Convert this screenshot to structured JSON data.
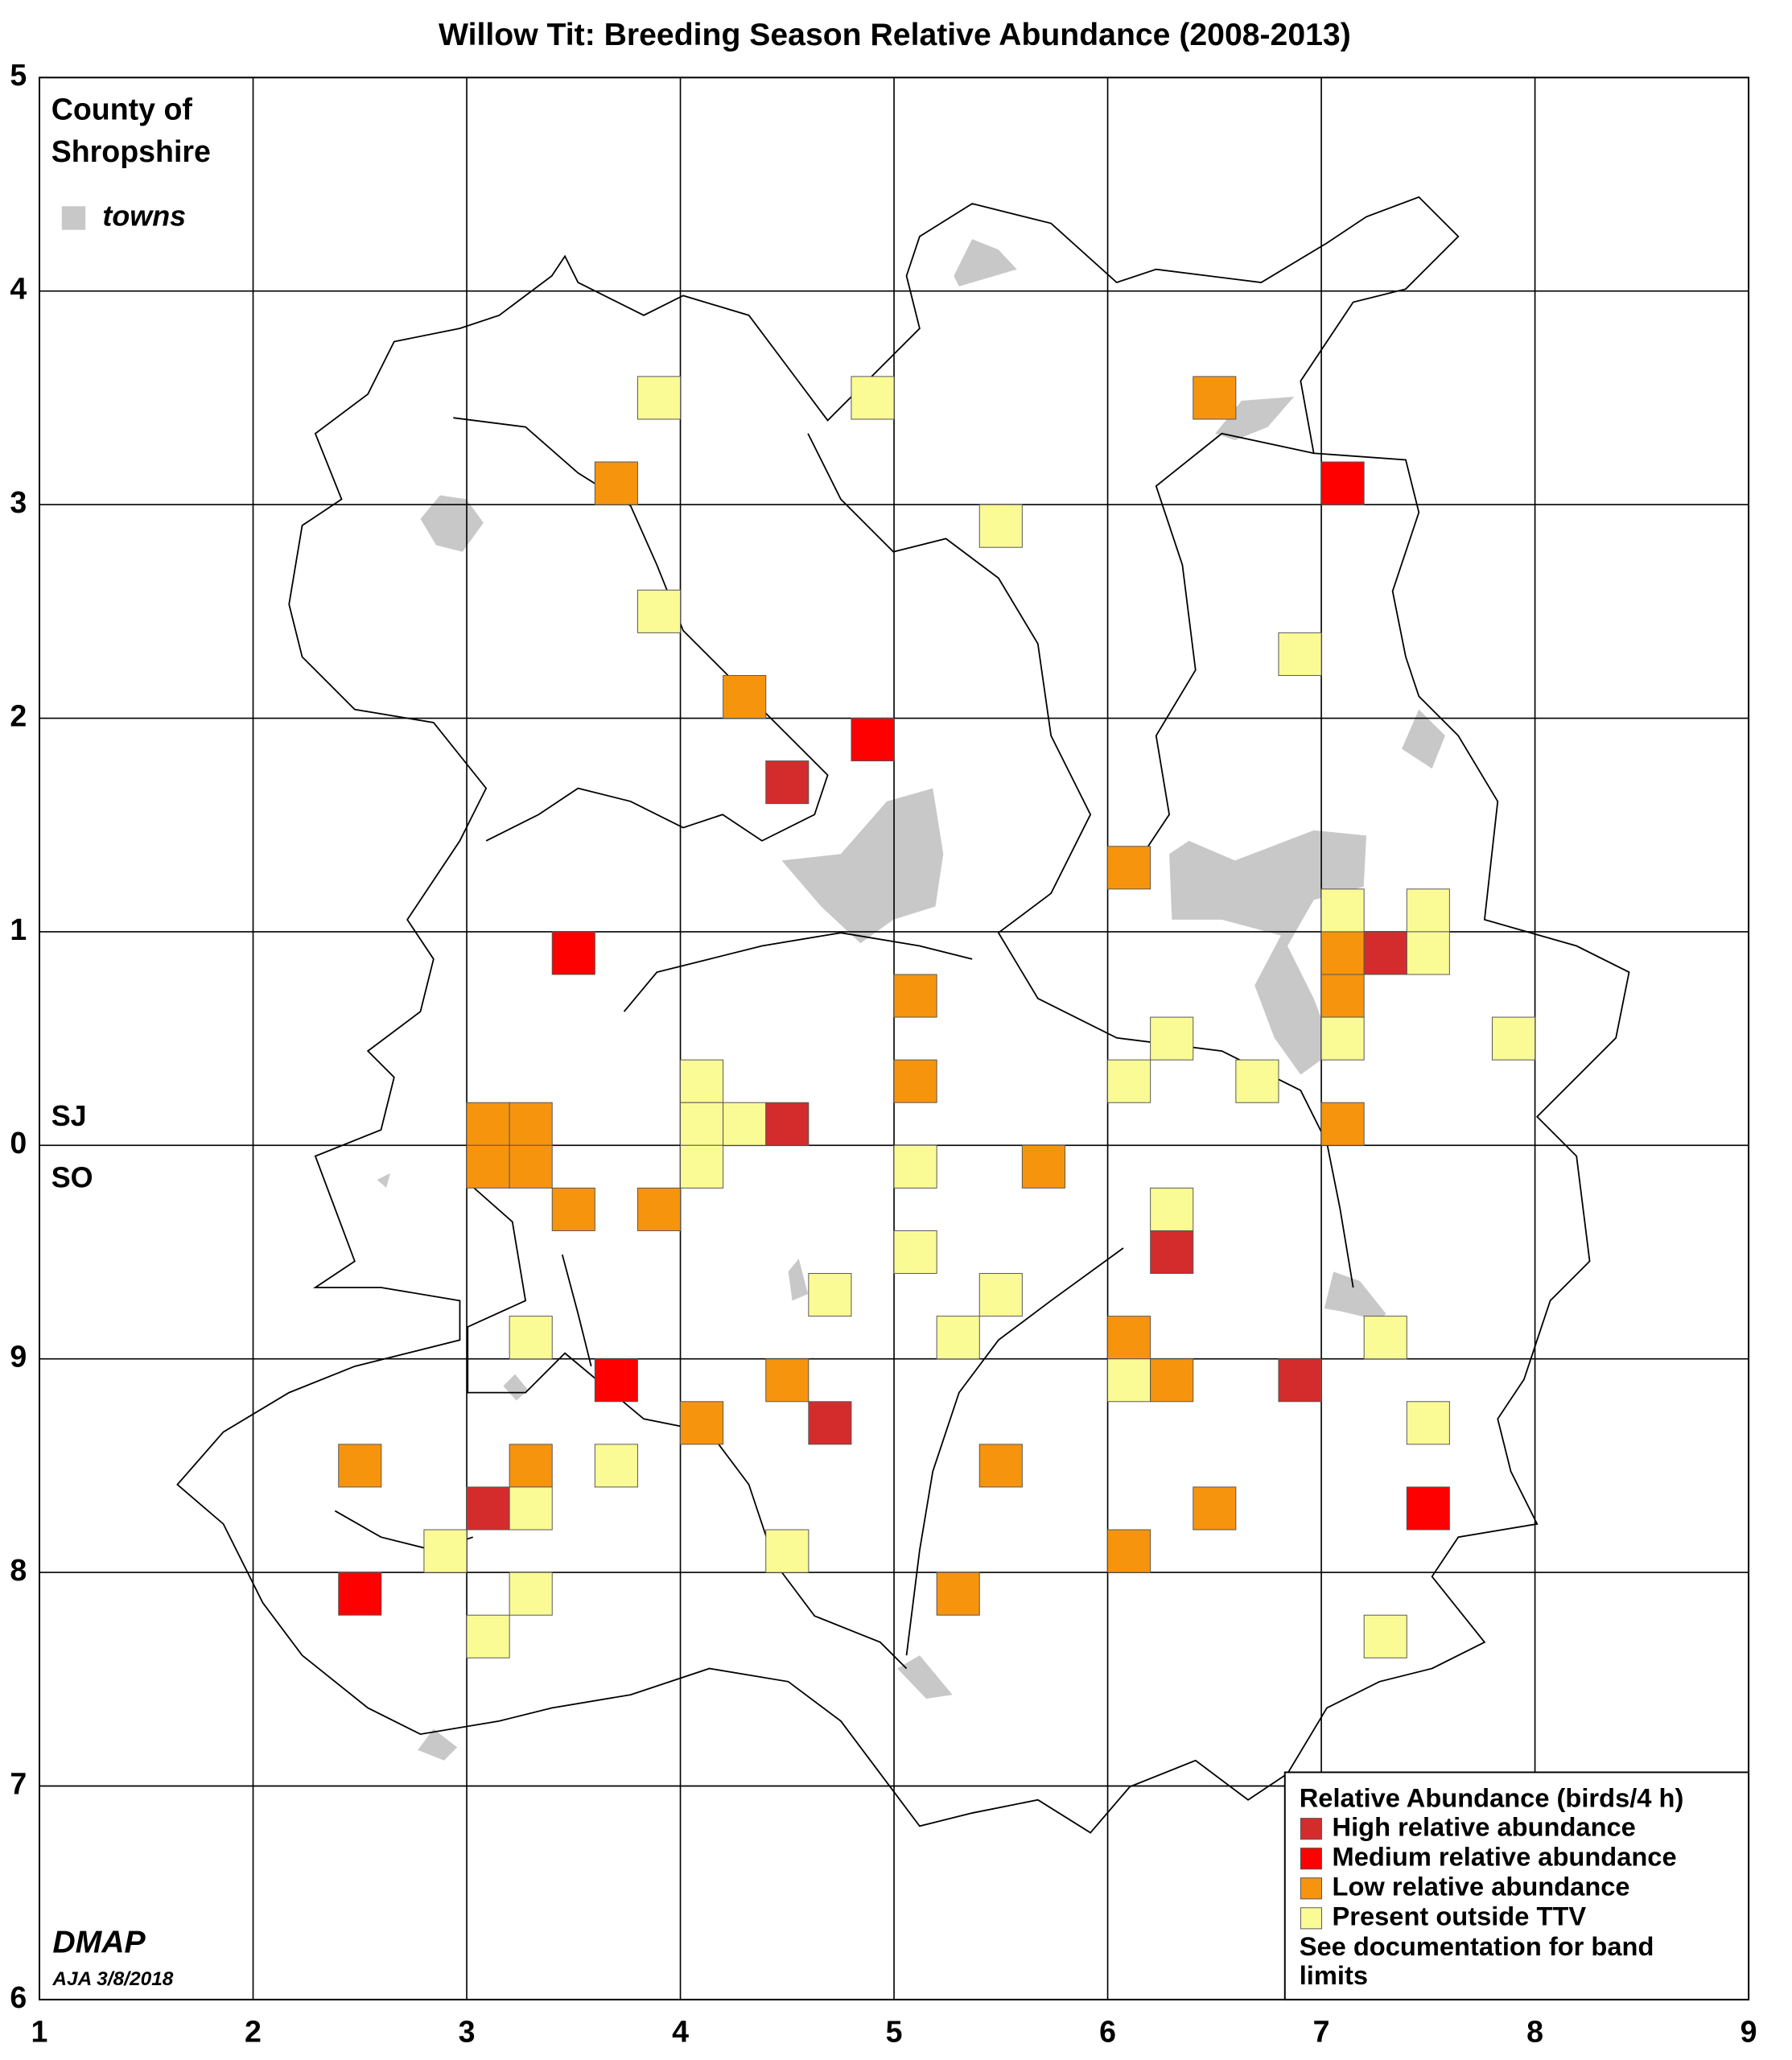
{
  "map": {
    "title": "Willow Tit: Breeding Season Relative Abundance (2008-2013)",
    "county": [
      "County of",
      "Shropshire"
    ],
    "towns_label": "towns",
    "zones": [
      "SJ",
      "SO"
    ],
    "xlim": [
      1,
      9
    ],
    "ylim": [
      -4,
      5
    ],
    "xticks": [
      1,
      2,
      3,
      4,
      5,
      6,
      7,
      8,
      9
    ],
    "yticks": [
      5,
      4,
      3,
      2,
      1,
      0,
      {
        "value": -1,
        "label": "9"
      },
      {
        "value": -2,
        "label": "8"
      },
      {
        "value": -3,
        "label": "7"
      },
      {
        "value": -4,
        "label": "6"
      }
    ],
    "legend": {
      "title": "Relative Abundance (birds/4 h)",
      "bands": [
        {
          "label": "High relative abundance",
          "color": "#d42c2c"
        },
        {
          "label": "Medium relative abundance",
          "color": "#fe0000"
        },
        {
          "label": "Low relative abundance",
          "color": "#f7940e"
        },
        {
          "label": "Present outside TTV",
          "color": "#fbfb96"
        }
      ],
      "note": [
        "See documentation for band",
        "limits"
      ]
    },
    "squares": [
      [
        3.8,
        3.4,
        3
      ],
      [
        4.8,
        3.4,
        3
      ],
      [
        6.4,
        3.4,
        2
      ],
      [
        3.6,
        3.0,
        2
      ],
      [
        7.0,
        3.0,
        1
      ],
      [
        5.4,
        2.8,
        3
      ],
      [
        3.8,
        2.4,
        3
      ],
      [
        6.8,
        2.2,
        3
      ],
      [
        4.2,
        2.0,
        2
      ],
      [
        4.8,
        1.8,
        1
      ],
      [
        4.4,
        1.6,
        0
      ],
      [
        6.0,
        1.2,
        2
      ],
      [
        3.4,
        0.8,
        1
      ],
      [
        7.0,
        1.0,
        3
      ],
      [
        7.4,
        1.0,
        3
      ],
      [
        7.4,
        0.8,
        3
      ],
      [
        7.0,
        0.8,
        2
      ],
      [
        7.2,
        0.8,
        0
      ],
      [
        7.0,
        0.6,
        2
      ],
      [
        7.0,
        0.4,
        3
      ],
      [
        5.0,
        0.6,
        2
      ],
      [
        6.2,
        0.4,
        3
      ],
      [
        7.8,
        0.4,
        3
      ],
      [
        5.0,
        0.2,
        2
      ],
      [
        6.0,
        0.2,
        3
      ],
      [
        6.6,
        0.2,
        3
      ],
      [
        4.0,
        0.2,
        3
      ],
      [
        4.0,
        0.0,
        3
      ],
      [
        4.2,
        0.0,
        3
      ],
      [
        4.4,
        0.0,
        0
      ],
      [
        3.0,
        0.0,
        2
      ],
      [
        3.2,
        0.0,
        2
      ],
      [
        3.0,
        -0.2,
        2
      ],
      [
        3.2,
        -0.2,
        2
      ],
      [
        4.0,
        -0.2,
        3
      ],
      [
        7.0,
        0.0,
        2
      ],
      [
        5.0,
        -0.2,
        3
      ],
      [
        5.6,
        -0.2,
        2
      ],
      [
        3.4,
        -0.4,
        2
      ],
      [
        3.8,
        -0.4,
        2
      ],
      [
        6.2,
        -0.4,
        3
      ],
      [
        6.2,
        -0.6,
        0
      ],
      [
        5.0,
        -0.6,
        3
      ],
      [
        4.6,
        -0.8,
        3
      ],
      [
        5.4,
        -0.8,
        3
      ],
      [
        3.2,
        -1.0,
        3
      ],
      [
        5.2,
        -1.0,
        3
      ],
      [
        6.0,
        -1.0,
        2
      ],
      [
        7.2,
        -1.0,
        3
      ],
      [
        3.6,
        -1.2,
        1
      ],
      [
        4.4,
        -1.2,
        2
      ],
      [
        6.0,
        -1.2,
        3
      ],
      [
        6.2,
        -1.2,
        2
      ],
      [
        6.8,
        -1.2,
        0
      ],
      [
        4.0,
        -1.4,
        2
      ],
      [
        4.6,
        -1.4,
        0
      ],
      [
        7.4,
        -1.4,
        3
      ],
      [
        2.4,
        -1.6,
        2
      ],
      [
        3.2,
        -1.6,
        2
      ],
      [
        3.6,
        -1.6,
        3
      ],
      [
        5.4,
        -1.6,
        2
      ],
      [
        3.0,
        -1.8,
        0
      ],
      [
        3.2,
        -1.8,
        3
      ],
      [
        6.4,
        -1.8,
        2
      ],
      [
        7.4,
        -1.8,
        1
      ],
      [
        2.8,
        -2.0,
        3
      ],
      [
        4.4,
        -2.0,
        3
      ],
      [
        6.0,
        -2.0,
        2
      ],
      [
        2.4,
        -2.2,
        1
      ],
      [
        3.2,
        -2.2,
        3
      ],
      [
        5.2,
        -2.2,
        2
      ],
      [
        3.0,
        -2.4,
        3
      ],
      [
        7.2,
        -2.4,
        3
      ]
    ],
    "credit": "DMAP",
    "date": "AJA 3/8/2018"
  }
}
